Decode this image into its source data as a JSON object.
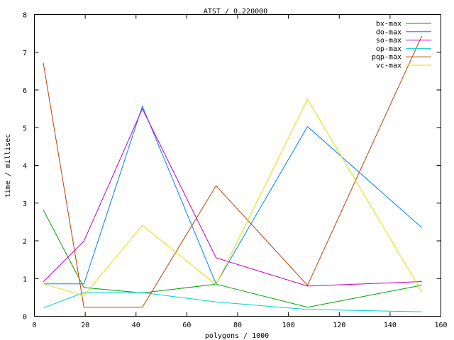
{
  "chart_data": {
    "type": "line",
    "title": "ATST / 0.220000",
    "xlabel": "polygons / 1000",
    "ylabel": "time / millisec",
    "xlim": [
      0,
      160
    ],
    "ylim": [
      0,
      8
    ],
    "xticks": [
      0,
      20,
      40,
      60,
      80,
      100,
      120,
      140,
      160
    ],
    "yticks": [
      0,
      1,
      2,
      3,
      4,
      5,
      6,
      7,
      8
    ],
    "grid": false,
    "legend_position": "top-right",
    "x": [
      3.5,
      19.5,
      42.5,
      71.5,
      107.5,
      152.5
    ],
    "series": [
      {
        "name": "bx-max",
        "color": "#00a000",
        "values": [
          2.82,
          0.76,
          0.62,
          0.85,
          0.24,
          0.82
        ]
      },
      {
        "name": "do-max",
        "color": "#0080ff",
        "values": [
          0.86,
          0.86,
          5.57,
          0.86,
          5.03,
          2.35
        ]
      },
      {
        "name": "so-max",
        "color": "#c000c0",
        "values": [
          0.91,
          1.99,
          5.5,
          1.55,
          0.8,
          0.92
        ]
      },
      {
        "name": "op-max",
        "color": "#00d0d0",
        "values": [
          0.22,
          0.63,
          0.63,
          0.38,
          0.18,
          0.12
        ]
      },
      {
        "name": "pqp-max",
        "color": "#c04000",
        "values": [
          6.72,
          0.24,
          0.24,
          3.46,
          0.82,
          7.43
        ]
      },
      {
        "name": "vc-max",
        "color": "#e0e000",
        "values": [
          0.86,
          0.55,
          2.41,
          0.84,
          5.75,
          0.65
        ]
      }
    ]
  }
}
